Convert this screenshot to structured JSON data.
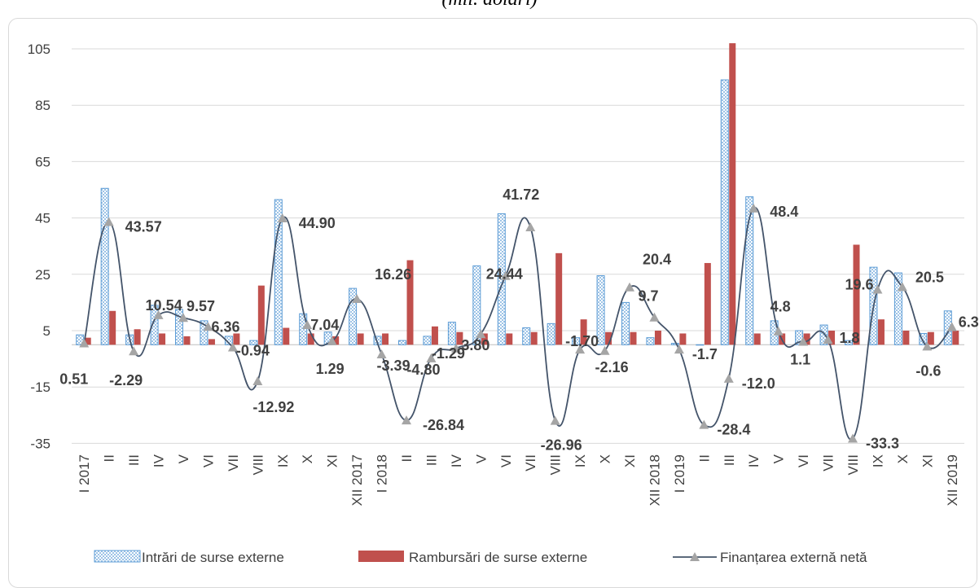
{
  "caption": "(mil. dolari)",
  "chart_data": {
    "type": "bar",
    "categories": [
      "I 2017",
      "II",
      "III",
      "IV",
      "V",
      "VI",
      "VII",
      "VIII",
      "IX",
      "X",
      "XI",
      "XII 2017",
      "I 2018",
      "II",
      "III",
      "IV",
      "V",
      "VI",
      "VII",
      "VIII",
      "IX",
      "X",
      "XI",
      "XII 2018",
      "I 2019",
      "II",
      "III",
      "IV",
      "V",
      "VI",
      "VII",
      "VIII",
      "IX",
      "X",
      "XI",
      "XII 2019"
    ],
    "ylim": [
      -35,
      110
    ],
    "yticks": [
      -35,
      -15,
      5,
      25,
      45,
      65,
      85,
      105
    ],
    "grid": true,
    "legend_position": "bottom",
    "series": [
      {
        "name": "Intrări de surse externe",
        "kind": "bar",
        "color": "#5b9bd5",
        "values": [
          3.5,
          55.5,
          3.5,
          14,
          12.5,
          8.5,
          3,
          1.5,
          51.5,
          11,
          4.5,
          20,
          3,
          1.5,
          3,
          8,
          28,
          46.5,
          6,
          7.5,
          2.5,
          24.5,
          15,
          2.5,
          0.5,
          0,
          94,
          52.5,
          8.5,
          5,
          7,
          1.5,
          27.5,
          25.5,
          4,
          12
        ]
      },
      {
        "name": "Rambursări de surse externe",
        "kind": "bar",
        "color": "#c0504d",
        "values": [
          2.5,
          12,
          5.5,
          4,
          3,
          2,
          4,
          21,
          6,
          4,
          3,
          4,
          4,
          30,
          6.5,
          4.5,
          4,
          4,
          4.5,
          32.5,
          9,
          4.5,
          4.5,
          5,
          4,
          29,
          107,
          4,
          4,
          4,
          5,
          35.5,
          9,
          5,
          4.5,
          5
        ]
      },
      {
        "name": "Finanțarea externă netă",
        "kind": "line",
        "color": "#44546a",
        "marker_color": "#a5a5a5",
        "values": [
          0.51,
          43.57,
          -2.29,
          10.54,
          9.57,
          6.36,
          -0.94,
          -12.92,
          44.9,
          7.04,
          1.29,
          16.26,
          -3.39,
          -26.84,
          -4.8,
          -1.29,
          3.8,
          24.44,
          41.72,
          -26.96,
          -1.7,
          -2.16,
          20.4,
          9.7,
          -1.7,
          -28.4,
          -12.0,
          48.4,
          4.8,
          1.1,
          1.8,
          -33.3,
          19.6,
          20.5,
          -0.6,
          6.3
        ],
        "labels": [
          "0.51",
          "43.57",
          "-2.29",
          "10.54",
          "9.57",
          "6.36",
          "-0.94",
          "-12.92",
          "44.90",
          "7.04",
          "1.29",
          "16.26",
          "-3.39",
          "-26.84",
          "-4.80",
          "-1.29",
          "3.80",
          "24.44",
          "41.72",
          "-26.96",
          "-1.70",
          "-2.16",
          "20.4",
          "9.7",
          "-1.7",
          "-28.4",
          "-12.0",
          "48.4",
          "4.8",
          "1.1",
          "1.8",
          "-33.3",
          "19.6",
          "20.5",
          "-0.6",
          "6.3"
        ]
      }
    ]
  }
}
